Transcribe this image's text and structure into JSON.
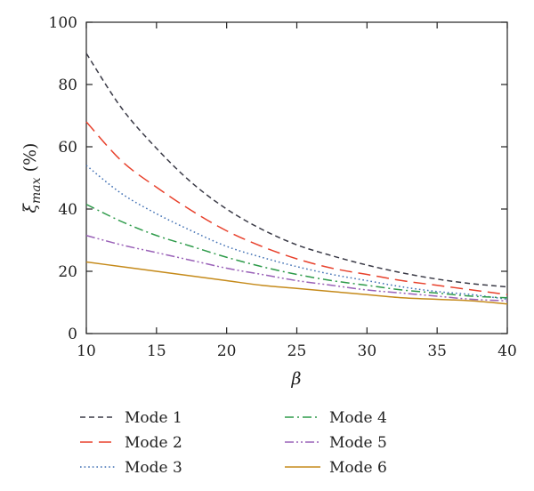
{
  "chart_data": {
    "type": "line",
    "xlabel": "β",
    "ylabel_main": "ξ",
    "ylabel_sub": "max",
    "ylabel_suffix": " (%)",
    "xlim": [
      10,
      40
    ],
    "ylim": [
      0,
      100
    ],
    "xticks": [
      10,
      15,
      20,
      25,
      30,
      35,
      40
    ],
    "yticks": [
      0,
      20,
      40,
      60,
      80,
      100
    ],
    "grid": false,
    "legend_position": "bottom",
    "x": [
      10,
      12.5,
      15,
      17.5,
      20,
      22.5,
      25,
      27.5,
      30,
      32.5,
      35,
      37.5,
      40
    ],
    "series": [
      {
        "name": "Mode 1",
        "color": "#3a3a46",
        "dash": "short-dash",
        "values": [
          90,
          72.5,
          59.5,
          48.5,
          40,
          33.5,
          28.5,
          25,
          22,
          19.5,
          17.5,
          16,
          15
        ]
      },
      {
        "name": "Mode 2",
        "color": "#e8412c",
        "dash": "long-dash",
        "values": [
          68,
          55.5,
          47,
          39.5,
          33,
          28,
          24,
          21,
          19,
          17,
          15.5,
          14,
          12.5
        ]
      },
      {
        "name": "Mode 3",
        "color": "#3f6fb3",
        "dash": "dotted",
        "values": [
          54,
          45,
          38.5,
          33,
          28,
          24.5,
          21.5,
          19,
          17,
          15,
          13.5,
          12.5,
          11
        ]
      },
      {
        "name": "Mode 4",
        "color": "#2e9b4a",
        "dash": "dash-dot",
        "values": [
          41.5,
          36,
          31.5,
          28,
          24.5,
          21.5,
          19,
          17,
          15.5,
          14,
          13,
          12,
          11.5
        ]
      },
      {
        "name": "Mode 5",
        "color": "#9a62b8",
        "dash": "dash-dot-dot",
        "values": [
          31.5,
          28.5,
          26,
          23.5,
          21,
          19,
          17,
          15.5,
          14,
          13,
          12,
          11,
          10.5
        ]
      },
      {
        "name": "Mode 6",
        "color": "#c58a1a",
        "dash": "solid",
        "values": [
          23,
          21.5,
          20,
          18.5,
          17,
          15.5,
          14.5,
          13.5,
          12.5,
          11.5,
          11,
          10.5,
          9.5
        ]
      }
    ]
  }
}
